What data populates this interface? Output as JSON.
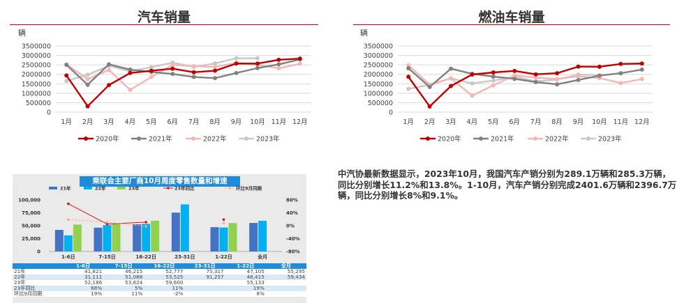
{
  "left_chart": {
    "title": "汽车销量",
    "unit": "辆"
  },
  "right_chart": {
    "title": "燃油车销量",
    "unit": "辆"
  },
  "news_text": "中汽协最新数据显示，2023年10月，我国汽车产销分别为289.1万辆和285.3万辆，同比分别增长11.2%和13.8%。1-10月，汽车产销分别完成2401.6万辆和2396.7万辆，同比分别增长8%和9.1%。",
  "pca": {
    "title": "乘联会主要厂商10月周度零售数量和增速",
    "legend": [
      "21年",
      "22年",
      "23年",
      "23年同比",
      "环比9月同期"
    ],
    "table_header": [
      "",
      "1-6日",
      "7-15日",
      "16-22日",
      "23-31日",
      "1-22日",
      "全月"
    ],
    "table_rows": [
      [
        "21年",
        "41,821",
        "46,215",
        "52,777",
        "75,317",
        "47,105",
        "55,295"
      ],
      [
        "22年",
        "31,111",
        "51,088",
        "53,525",
        "91,257",
        "46,415",
        "59,434"
      ],
      [
        "23年",
        "52,186",
        "53,624",
        "59,600",
        "",
        "55,133",
        ""
      ],
      [
        "23年同比",
        "68%",
        "5%",
        "11%",
        "",
        "19%",
        ""
      ],
      [
        "环比9月同期",
        "19%",
        "11%",
        "-2%",
        "",
        "8%",
        ""
      ]
    ]
  },
  "chart_data": [
    {
      "type": "line",
      "title": "汽车销量",
      "ylabel": "辆",
      "categories": [
        "1月",
        "2月",
        "3月",
        "4月",
        "5月",
        "6月",
        "7月",
        "8月",
        "9月",
        "10月",
        "11月",
        "12月"
      ],
      "yticks": [
        "0",
        "500000",
        "1000000",
        "1500000",
        "2000000",
        "2500000",
        "3000000",
        "3500000"
      ],
      "ylim": [
        0,
        3500000
      ],
      "legend_position": "bottom",
      "series": [
        {
          "name": "2020年",
          "color": "#c00000",
          "values": [
            1940000,
            310000,
            1430000,
            2070000,
            2190000,
            2300000,
            2110000,
            2190000,
            2570000,
            2570000,
            2770000,
            2830000
          ]
        },
        {
          "name": "2021年",
          "color": "#808080",
          "values": [
            2500000,
            1450000,
            2530000,
            2250000,
            2130000,
            2020000,
            1860000,
            1800000,
            2070000,
            2330000,
            2530000,
            2790000
          ]
        },
        {
          "name": "2022年",
          "color": "#f4b6b6",
          "values": [
            2530000,
            1740000,
            2230000,
            1180000,
            1860000,
            2500000,
            2430000,
            2390000,
            2610000,
            2500000,
            2320000,
            2560000
          ]
        },
        {
          "name": "2023年",
          "color": "#c8c8c8",
          "values": [
            1650000,
            1980000,
            2450000,
            2160000,
            2380000,
            2620000,
            2390000,
            2580000,
            2850000,
            2850000,
            null,
            null
          ]
        }
      ]
    },
    {
      "type": "line",
      "title": "燃油车销量",
      "ylabel": "辆",
      "categories": [
        "1月",
        "2月",
        "3月",
        "4月",
        "5月",
        "6月",
        "7月",
        "8月",
        "9月",
        "10月",
        "11月",
        "12月"
      ],
      "yticks": [
        "0",
        "500000",
        "1000000",
        "1500000",
        "2000000",
        "2500000",
        "3000000",
        "3500000"
      ],
      "ylim": [
        0,
        3500000
      ],
      "legend_position": "bottom",
      "series": [
        {
          "name": "2020年",
          "color": "#c00000",
          "values": [
            1870000,
            300000,
            1380000,
            1990000,
            2100000,
            2180000,
            2000000,
            2060000,
            2410000,
            2400000,
            2550000,
            2570000
          ]
        },
        {
          "name": "2021年",
          "color": "#808080",
          "values": [
            2320000,
            1330000,
            2300000,
            2030000,
            1880000,
            1760000,
            1590000,
            1470000,
            1700000,
            1930000,
            2060000,
            2250000
          ]
        },
        {
          "name": "2022年",
          "color": "#f4b6b6",
          "values": [
            2480000,
            1460000,
            1790000,
            870000,
            1420000,
            1940000,
            1830000,
            1750000,
            1900000,
            1800000,
            1540000,
            1750000
          ]
        },
        {
          "name": "2023年",
          "color": "#c8c8c8",
          "values": [
            1230000,
            1440000,
            1790000,
            1520000,
            1670000,
            1870000,
            1630000,
            1720000,
            1990000,
            1950000,
            null,
            null
          ]
        }
      ]
    },
    {
      "type": "bar",
      "title": "乘联会主要厂商10月周度零售数量和增速",
      "categories": [
        "1-6日",
        "7-15日",
        "16-22日",
        "23-31日",
        "1-22日",
        "全月"
      ],
      "ylim": [
        0,
        100000
      ],
      "yticks": [
        "0",
        "25,000",
        "50,000",
        "75,000",
        "100,000"
      ],
      "y2lim": [
        -0.8,
        0.8
      ],
      "y2ticks": [
        "-80%",
        "-40%",
        "0%",
        "40%",
        "80%"
      ],
      "series": [
        {
          "name": "21年",
          "color": "#4472c4",
          "values": [
            41821,
            46215,
            52777,
            75317,
            47105,
            55295
          ]
        },
        {
          "name": "22年",
          "color": "#00b0f0",
          "values": [
            31111,
            51088,
            53525,
            91257,
            46415,
            59434
          ]
        },
        {
          "name": "23年",
          "color": "#92d050",
          "values": [
            52186,
            53624,
            59600,
            null,
            55133,
            null
          ]
        },
        {
          "name": "23年同比",
          "color": "#e01010",
          "axis": "right",
          "values": [
            0.68,
            0.05,
            0.11,
            null,
            0.19,
            null
          ]
        },
        {
          "name": "环比9月同期",
          "color": "#f4b183",
          "axis": "right",
          "values": [
            0.19,
            0.11,
            -0.02,
            null,
            0.08,
            null
          ]
        }
      ]
    }
  ]
}
